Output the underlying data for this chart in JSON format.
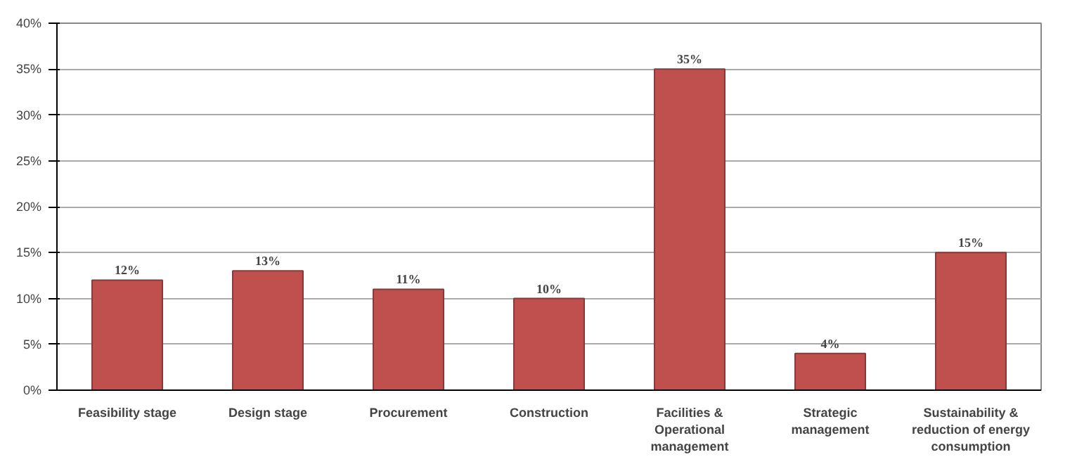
{
  "chart_data": {
    "type": "bar",
    "categories": [
      "Feasibility stage",
      "Design stage",
      "Procurement",
      "Construction",
      "Facilities & Operational management",
      "Strategic management",
      "Sustainability & reduction of energy consumption"
    ],
    "values": [
      12,
      13,
      11,
      10,
      35,
      4,
      15
    ],
    "value_labels": [
      "12%",
      "13%",
      "11%",
      "10%",
      "35%",
      "4%",
      "15%"
    ],
    "color": "#c0504d",
    "ylim": [
      0,
      40
    ],
    "yticks": [
      {
        "value": 0,
        "label": "0%"
      },
      {
        "value": 5,
        "label": "5%"
      },
      {
        "value": 10,
        "label": "10%"
      },
      {
        "value": 15,
        "label": "15%"
      },
      {
        "value": 20,
        "label": "20%"
      },
      {
        "value": 25,
        "label": "25%"
      },
      {
        "value": 30,
        "label": "30%"
      },
      {
        "value": 35,
        "label": "35%"
      },
      {
        "value": 40,
        "label": "40%"
      }
    ],
    "grid": "y"
  }
}
